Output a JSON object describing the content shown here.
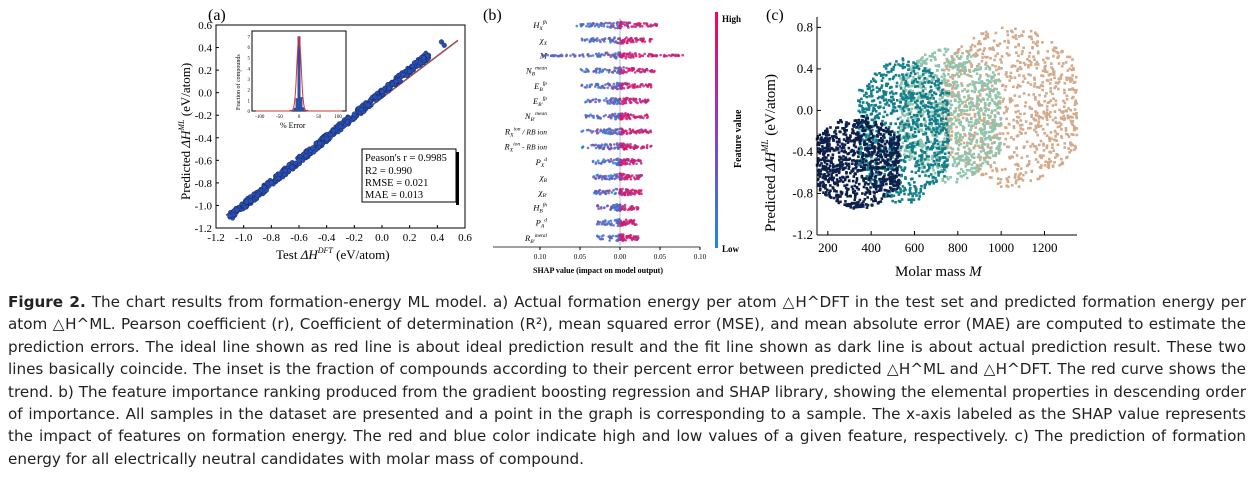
{
  "panels": {
    "a_label": "(a)",
    "b_label": "(b)",
    "c_label": "(c)"
  },
  "chart_data": [
    {
      "type": "scatter",
      "panel": "a",
      "xlabel": "Test ΔH^DFT (eV/atom)",
      "ylabel": "Predicted ΔH^ML (eV/atom)",
      "xlim": [
        -1.2,
        0.6
      ],
      "ylim": [
        -1.2,
        0.6
      ],
      "xticks": [
        "-1.2",
        "-1.0",
        "-0.8",
        "-0.6",
        "-0.4",
        "-0.2",
        "0.0",
        "0.2",
        "0.4",
        "0.6"
      ],
      "yticks": [
        "0.6",
        "0.4",
        "0.2",
        "0.0",
        "-0.2",
        "-0.4",
        "-0.6",
        "-0.8",
        "-1.0",
        "-1.2"
      ],
      "stats": [
        "Peason's r = 0.9985",
        "R2 = 0.990",
        "RMSE = 0.021",
        "MAE = 0.013"
      ],
      "points_sample": [
        [
          -1.1,
          -1.09
        ],
        [
          -1.05,
          -1.04
        ],
        [
          -0.98,
          -0.97
        ],
        [
          -0.95,
          -0.96
        ],
        [
          -0.9,
          -0.91
        ],
        [
          -0.85,
          -0.84
        ],
        [
          -0.8,
          -0.8
        ],
        [
          -0.75,
          -0.76
        ],
        [
          -0.7,
          -0.69
        ],
        [
          -0.65,
          -0.66
        ],
        [
          -0.6,
          -0.6
        ],
        [
          -0.55,
          -0.56
        ],
        [
          -0.5,
          -0.49
        ],
        [
          -0.45,
          -0.45
        ],
        [
          -0.4,
          -0.41
        ],
        [
          -0.35,
          -0.34
        ],
        [
          -0.3,
          -0.3
        ],
        [
          -0.25,
          -0.26
        ],
        [
          -0.2,
          -0.19
        ],
        [
          -0.15,
          -0.15
        ],
        [
          -0.1,
          -0.11
        ],
        [
          -0.05,
          -0.04
        ],
        [
          0.0,
          0.01
        ],
        [
          0.05,
          0.04
        ],
        [
          0.1,
          0.1
        ],
        [
          0.15,
          0.16
        ],
        [
          0.2,
          0.19
        ],
        [
          0.3,
          0.31
        ],
        [
          0.43,
          0.45
        ],
        [
          0.45,
          0.42
        ]
      ],
      "inset": {
        "xlabel": "% Error",
        "ylabel": "Fraction of compounds",
        "xticks": [
          "-100",
          "-50",
          "0",
          "50",
          "100"
        ],
        "yticks": [
          "0",
          "1",
          "2",
          "3",
          "4",
          "5",
          "6",
          "7"
        ],
        "bins": [
          -40,
          -30,
          -20,
          -10,
          -5,
          0,
          5,
          10,
          20,
          30,
          40
        ],
        "fractions": [
          0.02,
          0.05,
          0.1,
          0.3,
          1.2,
          7.0,
          1.3,
          0.35,
          0.1,
          0.05,
          0.02
        ]
      }
    },
    {
      "type": "beeswarm",
      "panel": "b",
      "xlabel": "SHAP value (impact on model output)",
      "xticks": [
        "0.10",
        "0.05",
        "0.00",
        "0.05",
        "0.10"
      ],
      "colorbar_label": "Feature value",
      "colorbar_high": "High",
      "colorbar_low": "Low",
      "features": [
        {
          "base": "H",
          "sub": "X",
          "sup": "fh",
          "spread": 0.6
        },
        {
          "base": "χ",
          "sub": "X",
          "sup": "",
          "spread": 0.5
        },
        {
          "base": "M",
          "sub": "",
          "sup": "",
          "spread": 1.0
        },
        {
          "base": "N",
          "sub": "B",
          "sup": "mean",
          "spread": 0.55
        },
        {
          "base": "E",
          "sub": "B",
          "sup": "fp",
          "spread": 0.5
        },
        {
          "base": "E",
          "sub": "B'",
          "sup": "fp",
          "spread": 0.45
        },
        {
          "base": "N",
          "sub": "B'",
          "sup": "mean",
          "spread": 0.45
        },
        {
          "base": "R",
          "sub": "X",
          "sup": "ion",
          "suffix": " / R_B^ion",
          "spread": 0.5
        },
        {
          "base": "R",
          "sub": "X",
          "sup": "ion",
          "suffix": " - R_B^ion",
          "spread": 0.5
        },
        {
          "base": "P",
          "sub": "X",
          "sup": "d",
          "spread": 0.35
        },
        {
          "base": "χ",
          "sub": "B",
          "sup": "",
          "spread": 0.35
        },
        {
          "base": "χ",
          "sub": "B'",
          "sup": "",
          "spread": 0.35
        },
        {
          "base": "H",
          "sub": "B",
          "sup": "fh",
          "spread": 0.3
        },
        {
          "base": "P",
          "sub": "A",
          "sup": "d",
          "spread": 0.3
        },
        {
          "base": "R",
          "sub": "B'",
          "sup": "metal",
          "spread": 0.3
        }
      ]
    },
    {
      "type": "scatter",
      "panel": "c",
      "xlabel": "Molar mass M",
      "ylabel": "Predicted ΔH^ML (eV/atom)",
      "xlim": [
        150,
        1350
      ],
      "ylim": [
        -1.2,
        0.9
      ],
      "xticks": [
        "200",
        "400",
        "600",
        "800",
        "1000",
        "1200"
      ],
      "yticks": [
        "0.8",
        "0.4",
        "0.0",
        "-0.4",
        "-0.8",
        "-1.2"
      ],
      "series": [
        {
          "color": "#0d1f4a",
          "mass_range": [
            150,
            530
          ],
          "y_range": [
            -0.95,
            -0.05
          ]
        },
        {
          "color": "#137f8c",
          "mass_range": [
            340,
            760
          ],
          "y_range": [
            -0.9,
            0.5
          ]
        },
        {
          "color": "#8fc4ad",
          "mass_range": [
            530,
            1000
          ],
          "y_range": [
            -0.7,
            0.62
          ]
        },
        {
          "color": "#d2aa8c",
          "mass_range": [
            730,
            1350
          ],
          "y_range": [
            -0.75,
            0.82
          ]
        }
      ]
    }
  ],
  "caption": {
    "fig_label": "Figure 2.",
    "text": "The chart results from formation-energy ML model. a) Actual formation energy per atom △H^DFT in the test set and predicted formation energy per atom △H^ML. Pearson coefficient (r), Coefficient of determination (R²), mean squared error (MSE), and mean absolute error (MAE) are computed to estimate the prediction errors. The ideal line shown as red line is about ideal prediction result and the fit line shown as dark line is about actual prediction result. These two lines basically coincide. The inset is the fraction of compounds according to their percent error between predicted △H^ML and △H^DFT. The red curve shows the trend. b) The feature importance ranking produced from the gradient boosting regression and SHAP library, showing the elemental properties in descending order of importance. All samples in the dataset are presented and a point in the graph is corresponding to a sample. The x-axis labeled as the SHAP value represents the impact of features on formation energy. The red and blue color indicate high and low values of a given feature, respectively. c) The prediction of formation energy for all electrically neutral candidates with molar mass of compound."
  }
}
